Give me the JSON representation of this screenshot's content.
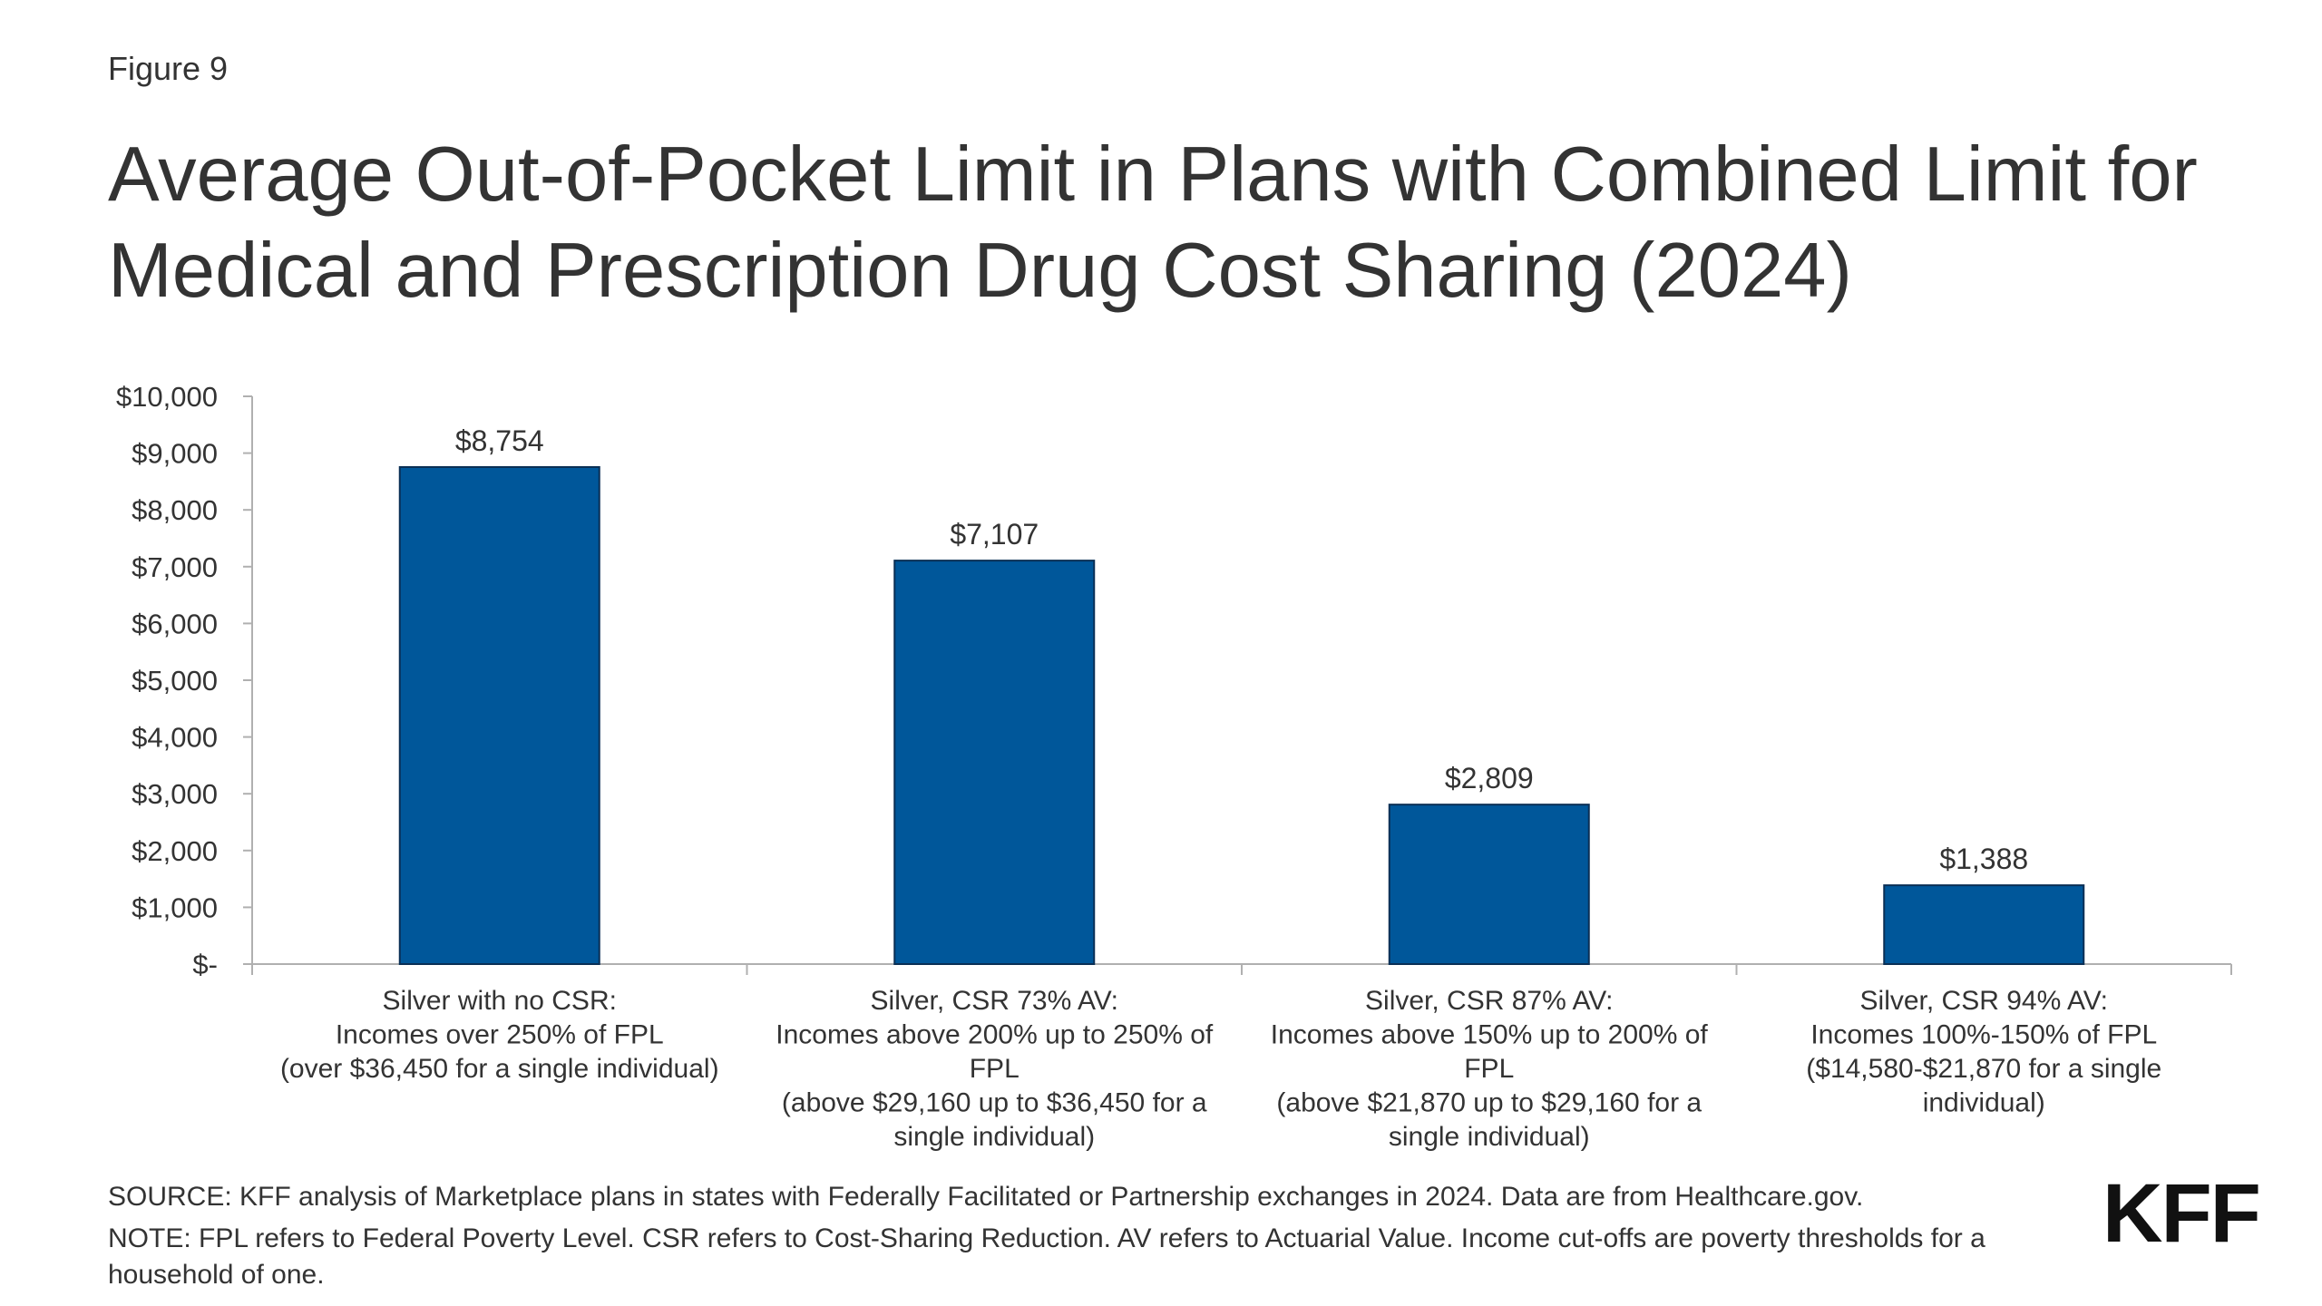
{
  "figure_label": "Figure 9",
  "title": "Average Out-of-Pocket Limit in Plans with Combined Limit for Medical and Prescription Drug Cost Sharing (2024)",
  "chart_data": {
    "type": "bar",
    "title": "Average Out-of-Pocket Limit in Plans with Combined Limit for Medical and Prescription Drug Cost Sharing (2024)",
    "categories": [
      [
        "Silver with no CSR:",
        "Incomes over 250% of FPL",
        "(over $36,450 for a single individual)"
      ],
      [
        "Silver, CSR 73% AV:",
        "Incomes above 200% up to 250% of",
        "FPL",
        "(above $29,160 up to $36,450 for a",
        "single individual)"
      ],
      [
        "Silver, CSR 87% AV:",
        "Incomes above 150% up to 200% of",
        "FPL",
        "(above $21,870 up to $29,160 for a",
        "single individual)"
      ],
      [
        "Silver, CSR 94% AV:",
        "Incomes 100%-150% of FPL",
        "($14,580-$21,870 for a single",
        "individual)"
      ]
    ],
    "values": [
      8754,
      7107,
      2809,
      1388
    ],
    "data_labels": [
      "$8,754",
      "$7,107",
      "$2,809",
      "$1,388"
    ],
    "ylim": [
      0,
      10000
    ],
    "yticks": [
      0,
      1000,
      2000,
      3000,
      4000,
      5000,
      6000,
      7000,
      8000,
      9000,
      10000
    ],
    "ytick_labels": [
      "$-",
      "$1,000",
      "$2,000",
      "$3,000",
      "$4,000",
      "$5,000",
      "$6,000",
      "$7,000",
      "$8,000",
      "$9,000",
      "$10,000"
    ],
    "xlabel": "",
    "ylabel": "",
    "grid": false,
    "bar_color": "#00579a",
    "bar_edge_color": "#0a2f55"
  },
  "footer": {
    "source": "SOURCE: KFF analysis of Marketplace plans in states with Federally Facilitated or Partnership exchanges in 2024. Data are from Healthcare.gov.",
    "note": "NOTE: FPL refers to Federal Poverty Level. CSR refers to Cost-Sharing Reduction. AV refers to Actuarial Value. Income cut-offs are poverty thresholds for a household of one."
  },
  "logo_text": "KFF"
}
